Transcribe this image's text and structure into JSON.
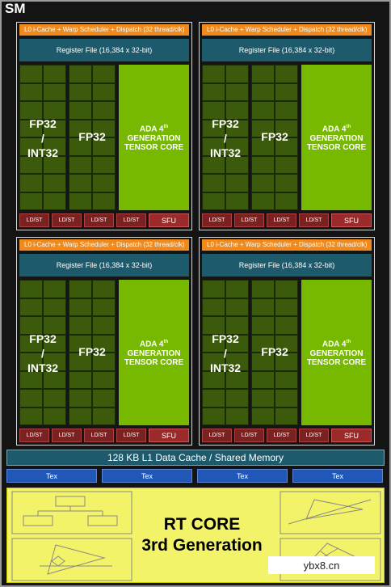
{
  "sm_label": "SM",
  "partition": {
    "dispatch_label": "L0 i-Cache + Warp Scheduler + Dispatch (32 thread/clk)",
    "register_file_label": "Register File (16,384 x 32-bit)",
    "fp32_int32_label_1": "FP32",
    "fp32_int32_label_2": "/",
    "fp32_int32_label_3": "INT32",
    "fp32_label": "FP32",
    "tensor_line1": "ADA 4",
    "tensor_sup": "th",
    "tensor_line2": "GENERATION",
    "tensor_line3": "TENSOR CORE",
    "ldst_label": "LD/ST",
    "sfu_label": "SFU"
  },
  "l1_cache_label": "128 KB L1 Data Cache / Shared Memory",
  "tex_label": "Tex",
  "rt_core": {
    "line1": "RT CORE",
    "line2": "3rd Generation"
  },
  "watermark": "ybx8.cn",
  "colors": {
    "dispatch": "#f08a1c",
    "register_file": "#1d5a6b",
    "fp_core": "#3b5a0b",
    "tensor_core": "#76b900",
    "ldst": "#7a2222",
    "tex": "#2158b8",
    "rt_core": "#f3f36a"
  }
}
